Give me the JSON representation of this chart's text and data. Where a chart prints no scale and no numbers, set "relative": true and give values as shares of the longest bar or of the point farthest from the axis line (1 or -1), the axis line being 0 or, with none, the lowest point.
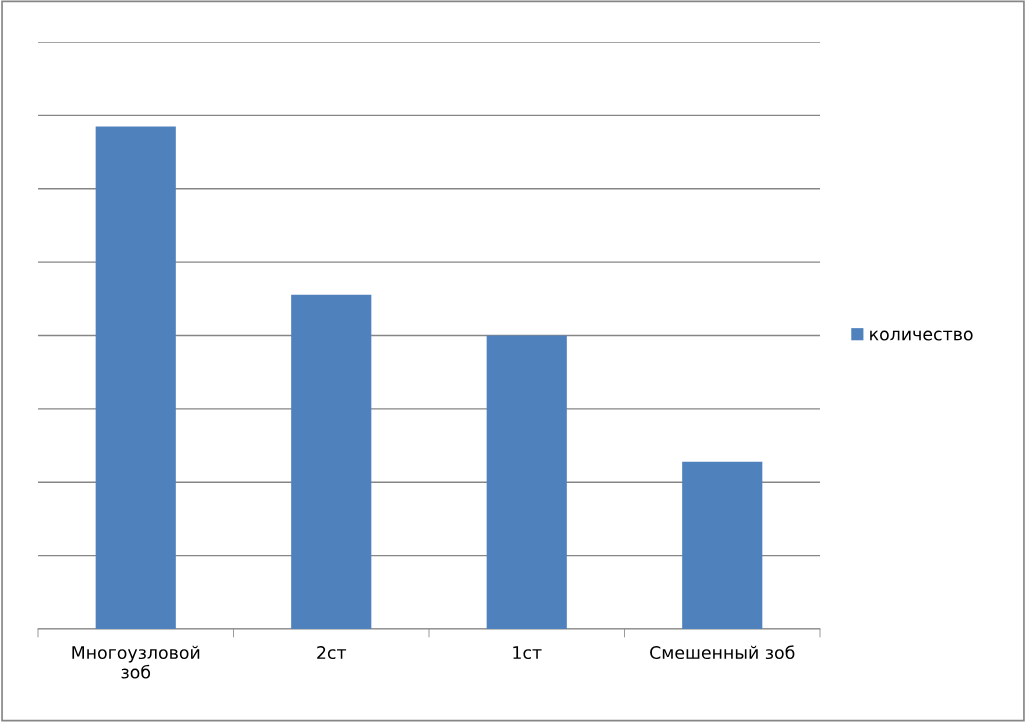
{
  "chart_data": {
    "type": "bar",
    "relative": true,
    "categories": [
      "Многоузловой\nзоб",
      "2ст",
      "1ст",
      "Смешенный зоб"
    ],
    "series": [
      {
        "name": "количество",
        "color": "#4f81bd",
        "values": [
          1,
          0.665,
          0.584,
          0.333
        ]
      }
    ],
    "grid": "y",
    "legend": "right"
  }
}
